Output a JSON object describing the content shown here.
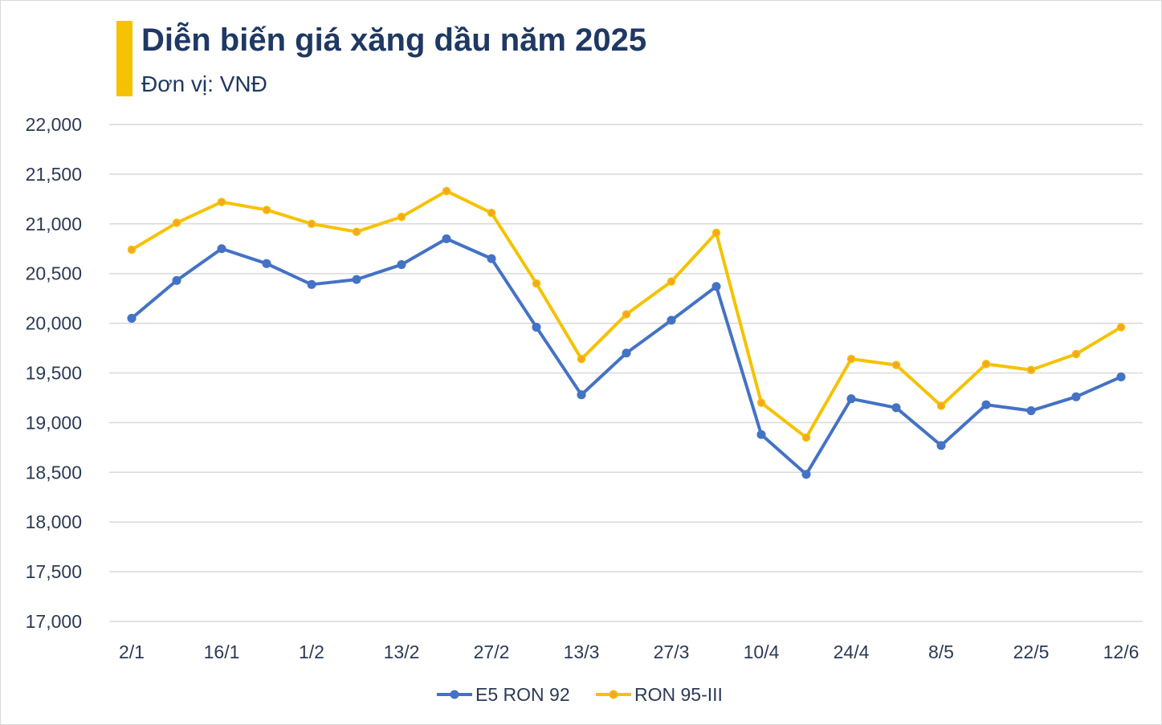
{
  "header": {
    "title": "Diễn biến giá xăng dầu năm 2025",
    "subtitle": "Đơn vị: VNĐ",
    "accent_color": "#f5c200"
  },
  "chart_data": {
    "type": "line",
    "title": "Diễn biến giá xăng dầu năm 2025",
    "subtitle": "Đơn vị: VNĐ",
    "xlabel": "",
    "ylabel": "",
    "ylim": [
      17000,
      22000
    ],
    "y_ticks": [
      "17,000",
      "17,500",
      "18,000",
      "18,500",
      "19,000",
      "19,500",
      "20,000",
      "20,500",
      "21,000",
      "21,500",
      "22,000"
    ],
    "grid": true,
    "legend_position": "bottom",
    "x_tick_labels": [
      "2/1",
      "16/1",
      "1/2",
      "13/2",
      "27/2",
      "13/3",
      "27/3",
      "10/4",
      "24/4",
      "8/5",
      "22/5",
      "12/6"
    ],
    "x_count": 23,
    "series": [
      {
        "name": "E5 RON 92",
        "color": "#4472c4",
        "values": [
          20050,
          20430,
          20750,
          20600,
          20390,
          20440,
          20590,
          20850,
          20650,
          19960,
          19280,
          19700,
          20030,
          20370,
          18880,
          18480,
          19240,
          19150,
          18770,
          19180,
          19120,
          19260,
          19460
        ]
      },
      {
        "name": "RON 95-III",
        "color": "#f5c200",
        "values": [
          20740,
          21010,
          21220,
          21140,
          21000,
          20920,
          21070,
          21330,
          21110,
          20400,
          19640,
          20090,
          20420,
          20910,
          19200,
          18850,
          19640,
          19580,
          19170,
          19590,
          19530,
          19690,
          19960
        ]
      }
    ]
  }
}
